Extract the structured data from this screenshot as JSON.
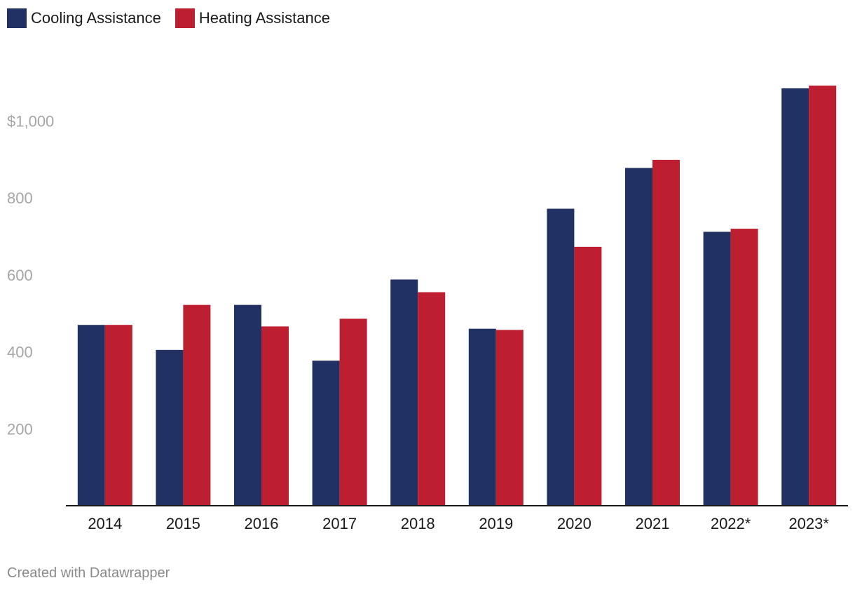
{
  "chart_data": {
    "type": "bar",
    "categories": [
      "2014",
      "2015",
      "2016",
      "2017",
      "2018",
      "2019",
      "2020",
      "2021",
      "2022*",
      "2023*"
    ],
    "series": [
      {
        "name": "Cooling Assistance",
        "color": "#223163",
        "values": [
          470,
          405,
          522,
          377,
          588,
          460,
          772,
          878,
          712,
          1085
        ]
      },
      {
        "name": "Heating Assistance",
        "color": "#bd1f30",
        "values": [
          470,
          522,
          466,
          486,
          555,
          457,
          673,
          899,
          720,
          1092
        ]
      }
    ],
    "yticks": [
      {
        "value": 200,
        "label": "200"
      },
      {
        "value": 400,
        "label": "400"
      },
      {
        "value": 600,
        "label": "600"
      },
      {
        "value": 800,
        "label": "800"
      },
      {
        "value": 1000,
        "label": "$1,000"
      }
    ],
    "ylim": [
      0,
      1100
    ],
    "legend_position": "top-left",
    "grid": false
  },
  "footer": {
    "credit": "Created with Datawrapper"
  }
}
